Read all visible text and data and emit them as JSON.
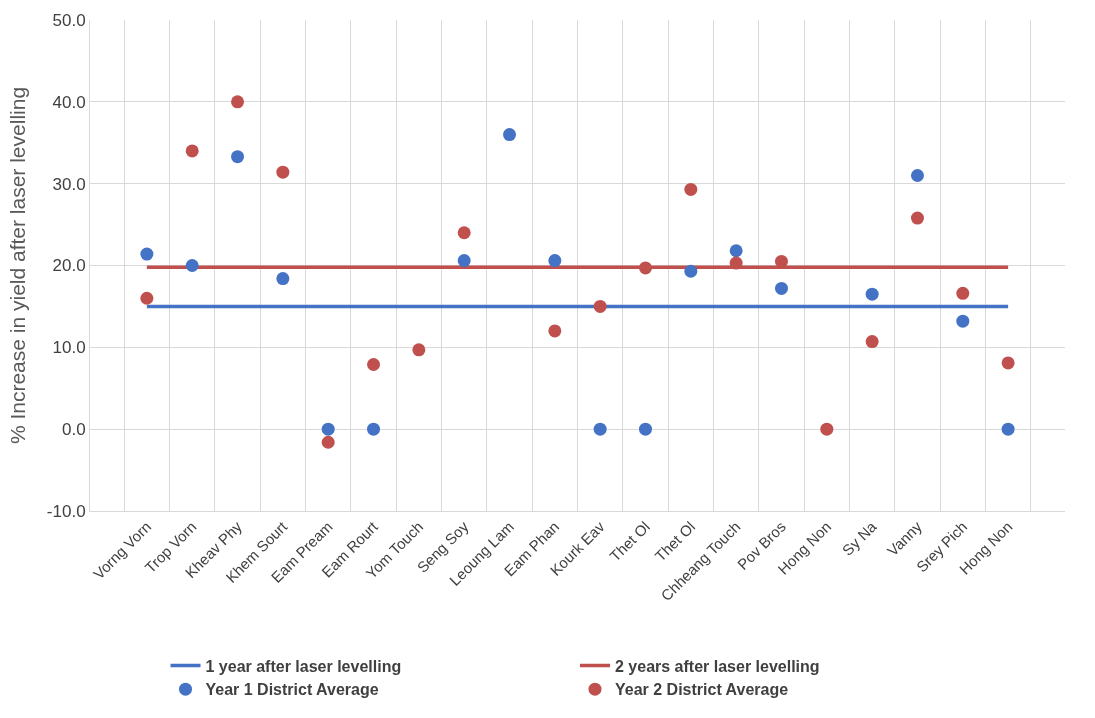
{
  "chart_data": {
    "type": "scatter",
    "ylabel": "% Increase in yield after laser levelling",
    "categories": [
      "Vorng Vorn",
      "Trop Vorn",
      "Kheav Phy",
      "Khem Sourt",
      "Eam Pream",
      "Eam Rourt",
      "Yom Touch",
      "Seng Soy",
      "Leoung Lam",
      "Eam Phan",
      "Kourk Eav",
      "Thet Ol",
      "Thet Ol",
      "Chheang Touch",
      "Pov Bros",
      "Hong Non",
      "Sy Na",
      "Vanny",
      "Srey Pich",
      "Hong Non"
    ],
    "series": [
      {
        "name": "1 year after laser levelling",
        "type": "line",
        "color": "#4472c4",
        "line_style": "solid",
        "marker": "none",
        "values": [
          15.0,
          15.0,
          15.0,
          15.0,
          15.0,
          15.0,
          15.0,
          15.0,
          15.0,
          15.0,
          15.0,
          15.0,
          15.0,
          15.0,
          15.0,
          15.0,
          15.0,
          15.0,
          15.0,
          15.0
        ]
      },
      {
        "name": "2 years after laser levelling",
        "type": "line",
        "color": "#c0504d",
        "line_style": "solid",
        "marker": "none",
        "values": [
          19.8,
          19.8,
          19.8,
          19.8,
          19.8,
          19.8,
          19.8,
          19.8,
          19.8,
          19.8,
          19.8,
          19.8,
          19.8,
          19.8,
          19.8,
          19.8,
          19.8,
          19.8,
          19.8,
          19.8
        ]
      },
      {
        "name": "Year 1 District Average",
        "color": "#4472c4",
        "marker": "circle",
        "values": [
          21.4,
          20.0,
          33.3,
          18.4,
          0.0,
          0.0,
          null,
          20.6,
          36.0,
          20.6,
          0.0,
          0.0,
          19.3,
          21.8,
          17.2,
          null,
          16.5,
          31.0,
          13.2,
          0.0
        ]
      },
      {
        "name": "Year 2 District Average",
        "color": "#c0504d",
        "marker": "circle",
        "values": [
          16.0,
          34.0,
          40.0,
          31.4,
          -1.6,
          7.9,
          9.7,
          24.0,
          null,
          12.0,
          15.0,
          19.7,
          29.3,
          20.3,
          20.5,
          0.0,
          10.7,
          25.8,
          16.6,
          8.1
        ]
      }
    ],
    "ylim": [
      -10,
      50
    ],
    "yticks": [
      {
        "value": -10,
        "label": "-10.0"
      },
      {
        "value": 0,
        "label": "0.0"
      },
      {
        "value": 10,
        "label": "10.0"
      },
      {
        "value": 20,
        "label": "20.0"
      },
      {
        "value": 30,
        "label": "30.0"
      },
      {
        "value": 40,
        "label": "40.0"
      },
      {
        "value": 50,
        "label": "50.0"
      }
    ],
    "grid": true,
    "legend": "bottom"
  }
}
